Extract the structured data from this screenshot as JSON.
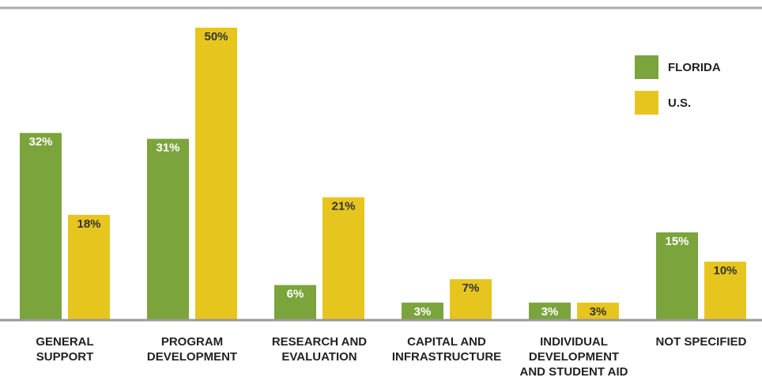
{
  "chart_data": {
    "type": "bar",
    "categories": [
      "GENERAL\nSUPPORT",
      "PROGRAM\nDEVELOPMENT",
      "RESEARCH AND\nEVALUATION",
      "CAPITAL AND\nINFRASTRUCTURE",
      "INDIVIDUAL\nDEVELOPMENT\nAND STUDENT AID",
      "NOT SPECIFIED"
    ],
    "series": [
      {
        "name": "FLORIDA",
        "color": "#7ba43c",
        "values": [
          32,
          31,
          6,
          3,
          3,
          15
        ],
        "value_labels": [
          "32%",
          "31%",
          "6%",
          "3%",
          "3%",
          "15%"
        ]
      },
      {
        "name": "U.S.",
        "color": "#e6c51f",
        "values": [
          18,
          50,
          21,
          7,
          3,
          10
        ],
        "value_labels": [
          "18%",
          "50%",
          "21%",
          "7%",
          "3%",
          "10%"
        ]
      }
    ],
    "ylim": [
      0,
      50
    ]
  }
}
